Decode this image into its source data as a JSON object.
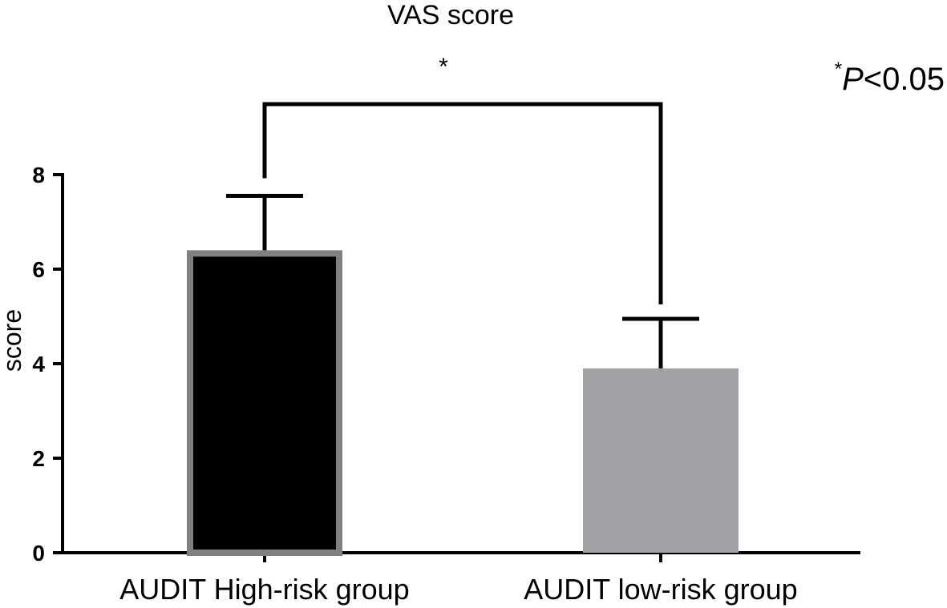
{
  "chart_data": {
    "type": "bar",
    "title": "VAS score",
    "ylabel": "score",
    "xlabel": "",
    "ylim": [
      0,
      8
    ],
    "yticks": [
      0,
      2,
      4,
      6,
      8
    ],
    "categories": [
      "AUDIT  High-risk group",
      "AUDIT  low-risk group"
    ],
    "values": [
      6.4,
      3.9
    ],
    "errors": [
      1.15,
      1.05
    ],
    "bar_fill_colors": [
      "#000000",
      "#a2a1a6"
    ],
    "bar_edge_colors": [
      "#808080",
      "#a2a1a6"
    ],
    "significance": {
      "between": [
        0,
        1
      ],
      "marker": "*",
      "note_star": "*",
      "note_p": "P",
      "note_rest": "<0.05"
    }
  }
}
